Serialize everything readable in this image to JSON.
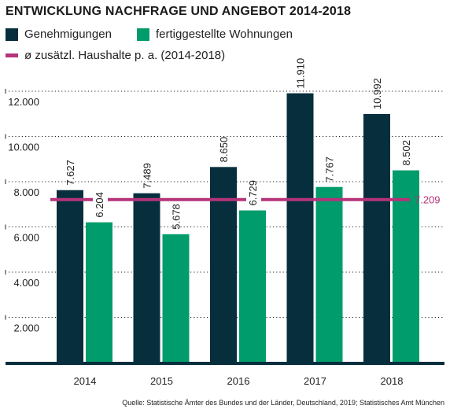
{
  "title": "ENTWICKLUNG NACHFRAGE UND ANGEBOT 2014-2018",
  "legend": [
    {
      "label": "Genehmigungen",
      "color": "#062e3c"
    },
    {
      "label": "fertiggestellte Wohnungen",
      "color": "#009c6b"
    },
    {
      "label": "ø zusätzl. Haushalte p. a. (2014-2018)",
      "color": "#b5337a"
    }
  ],
  "source": "Quelle: Statistische Ämter des Bundes und der Länder, Deutschland, 2019; Statistisches Amt München",
  "chart_data": {
    "type": "bar",
    "title": "ENTWICKLUNG NACHFRAGE UND ANGEBOT 2014-2018",
    "categories": [
      "2014",
      "2015",
      "2016",
      "2017",
      "2018"
    ],
    "series": [
      {
        "name": "Genehmigungen",
        "values": [
          7627,
          7489,
          8650,
          11910,
          10992
        ],
        "labels": [
          "7.627",
          "7.489",
          "8.650",
          "11.910",
          "10.992"
        ],
        "color": "#062e3c"
      },
      {
        "name": "fertiggestellte Wohnungen",
        "values": [
          6204,
          5678,
          6729,
          7767,
          8502
        ],
        "labels": [
          "6.204",
          "5.678",
          "6.729",
          "7.767",
          "8.502"
        ],
        "color": "#009c6b"
      }
    ],
    "reference_line": {
      "name": "ø zusätzl. Haushalte p. a. (2014-2018)",
      "value": 7209,
      "label": "7.209",
      "color": "#b5337a"
    },
    "yticks": [
      2000,
      4000,
      6000,
      8000,
      10000,
      12000
    ],
    "ytick_labels": [
      "2.000",
      "4.000",
      "6.000",
      "8.000",
      "10.000",
      "12.000"
    ],
    "ylim": [
      0,
      12000
    ],
    "grid": "horizontal dotted",
    "legend_position": "top-left"
  }
}
